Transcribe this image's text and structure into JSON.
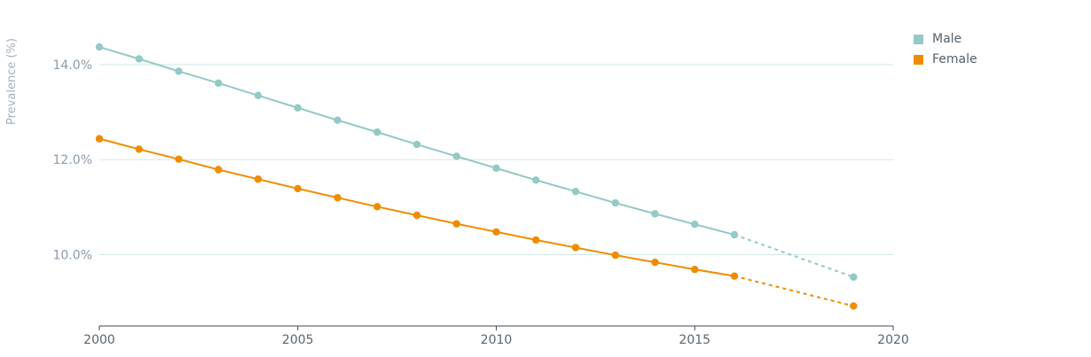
{
  "chart_data": {
    "type": "line",
    "title": "",
    "xlabel": "",
    "ylabel": "Prevalence (%)",
    "xlim": [
      2000,
      2020
    ],
    "ylim": [
      8.5,
      14.8
    ],
    "x_ticks": [
      2000,
      2005,
      2010,
      2015,
      2020
    ],
    "y_ticks": [
      10.0,
      12.0,
      14.0
    ],
    "y_tick_format": "%",
    "grid": "horizontal",
    "legend_position": "top-right",
    "series": [
      {
        "name": "Male",
        "color": "#93c9c6",
        "x": [
          2000,
          2001,
          2002,
          2003,
          2004,
          2005,
          2006,
          2007,
          2008,
          2009,
          2010,
          2011,
          2012,
          2013,
          2014,
          2015,
          2016
        ],
        "values": [
          14.37,
          14.12,
          13.86,
          13.61,
          13.35,
          13.09,
          12.83,
          12.58,
          12.32,
          12.07,
          11.82,
          11.57,
          11.33,
          11.09,
          10.86,
          10.64,
          10.42
        ],
        "projection": {
          "x": [
            2016,
            2019
          ],
          "values": [
            10.42,
            9.53
          ]
        }
      },
      {
        "name": "Female",
        "color": "#f08c00",
        "x": [
          2000,
          2001,
          2002,
          2003,
          2004,
          2005,
          2006,
          2007,
          2008,
          2009,
          2010,
          2011,
          2012,
          2013,
          2014,
          2015,
          2016
        ],
        "values": [
          12.44,
          12.22,
          12.01,
          11.79,
          11.59,
          11.39,
          11.2,
          11.01,
          10.83,
          10.65,
          10.48,
          10.31,
          10.15,
          9.99,
          9.84,
          9.69,
          9.55
        ],
        "projection": {
          "x": [
            2016,
            2019
          ],
          "values": [
            9.55,
            8.92
          ]
        }
      }
    ]
  },
  "legend": {
    "items": [
      {
        "label": "Male",
        "color": "#93c9c6"
      },
      {
        "label": "Female",
        "color": "#f08c00"
      }
    ]
  }
}
